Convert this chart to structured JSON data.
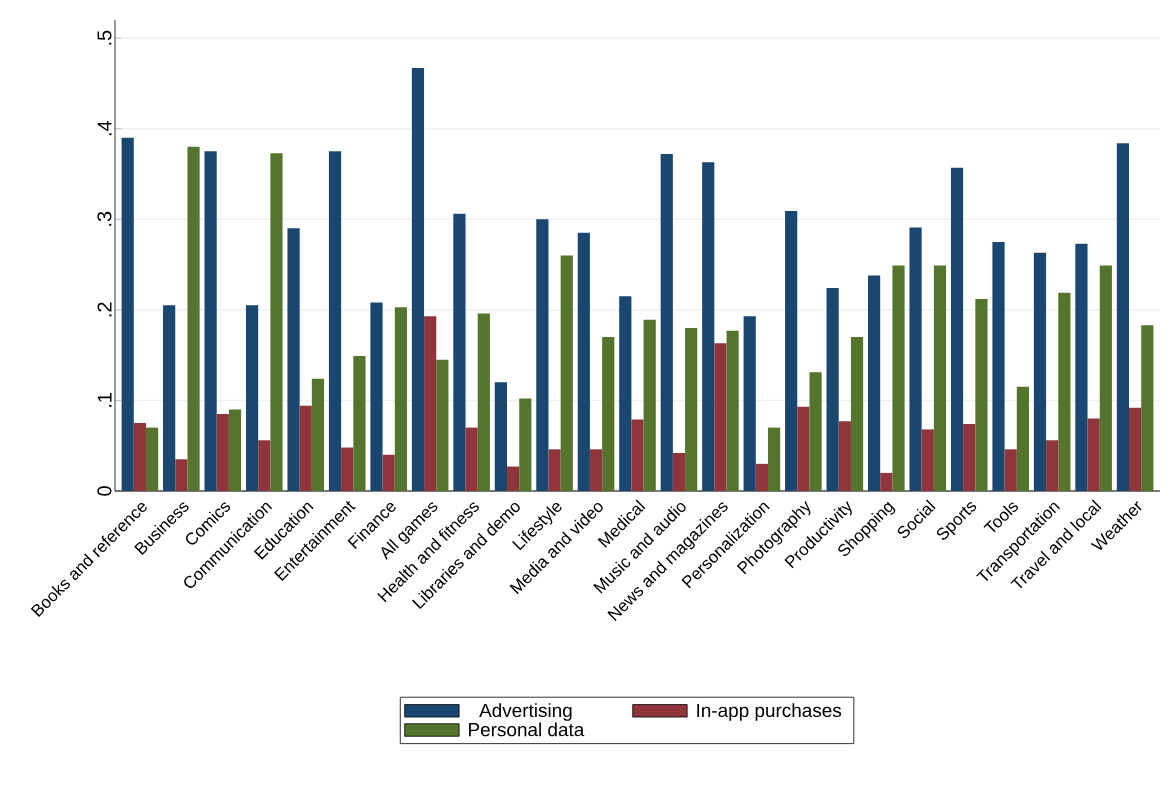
{
  "chart_data": {
    "type": "bar",
    "categories": [
      "Books and reference",
      "Business",
      "Comics",
      "Communication",
      "Education",
      "Entertainment",
      "Finance",
      "All games",
      "Health and fitness",
      "Libraries and demo",
      "Lifestyle",
      "Media and video",
      "Medical",
      "Music and audio",
      "News and magazines",
      "Personalization",
      "Photography",
      "Productivity",
      "Shopping",
      "Social",
      "Sports",
      "Tools",
      "Transportation",
      "Travel and local",
      "Weather"
    ],
    "series": [
      {
        "name": "Advertising",
        "color": "#1a476f",
        "values": [
          0.39,
          0.205,
          0.375,
          0.205,
          0.29,
          0.375,
          0.208,
          0.467,
          0.306,
          0.12,
          0.3,
          0.285,
          0.215,
          0.372,
          0.363,
          0.193,
          0.309,
          0.224,
          0.238,
          0.291,
          0.357,
          0.275,
          0.263,
          0.273,
          0.384
        ]
      },
      {
        "name": "In-app purchases",
        "color": "#90353b",
        "values": [
          0.075,
          0.035,
          0.085,
          0.056,
          0.094,
          0.048,
          0.04,
          0.193,
          0.07,
          0.027,
          0.046,
          0.046,
          0.079,
          0.042,
          0.163,
          0.03,
          0.093,
          0.077,
          0.02,
          0.068,
          0.074,
          0.046,
          0.056,
          0.08,
          0.092
        ]
      },
      {
        "name": "Personal data",
        "color": "#55752f",
        "values": [
          0.07,
          0.38,
          0.09,
          0.373,
          0.124,
          0.149,
          0.203,
          0.145,
          0.196,
          0.102,
          0.26,
          0.17,
          0.189,
          0.18,
          0.177,
          0.07,
          0.131,
          0.17,
          0.249,
          0.249,
          0.212,
          0.115,
          0.219,
          0.249,
          0.183
        ]
      }
    ],
    "ylim": [
      0,
      0.52
    ],
    "yticks": [
      {
        "value": 0,
        "label": "0"
      },
      {
        "value": 0.1,
        "label": ".1"
      },
      {
        "value": 0.2,
        "label": ".2"
      },
      {
        "value": 0.3,
        "label": ".3"
      },
      {
        "value": 0.4,
        "label": ".4"
      },
      {
        "value": 0.5,
        "label": ".5"
      }
    ],
    "grid": "y",
    "legend": "bottom"
  }
}
